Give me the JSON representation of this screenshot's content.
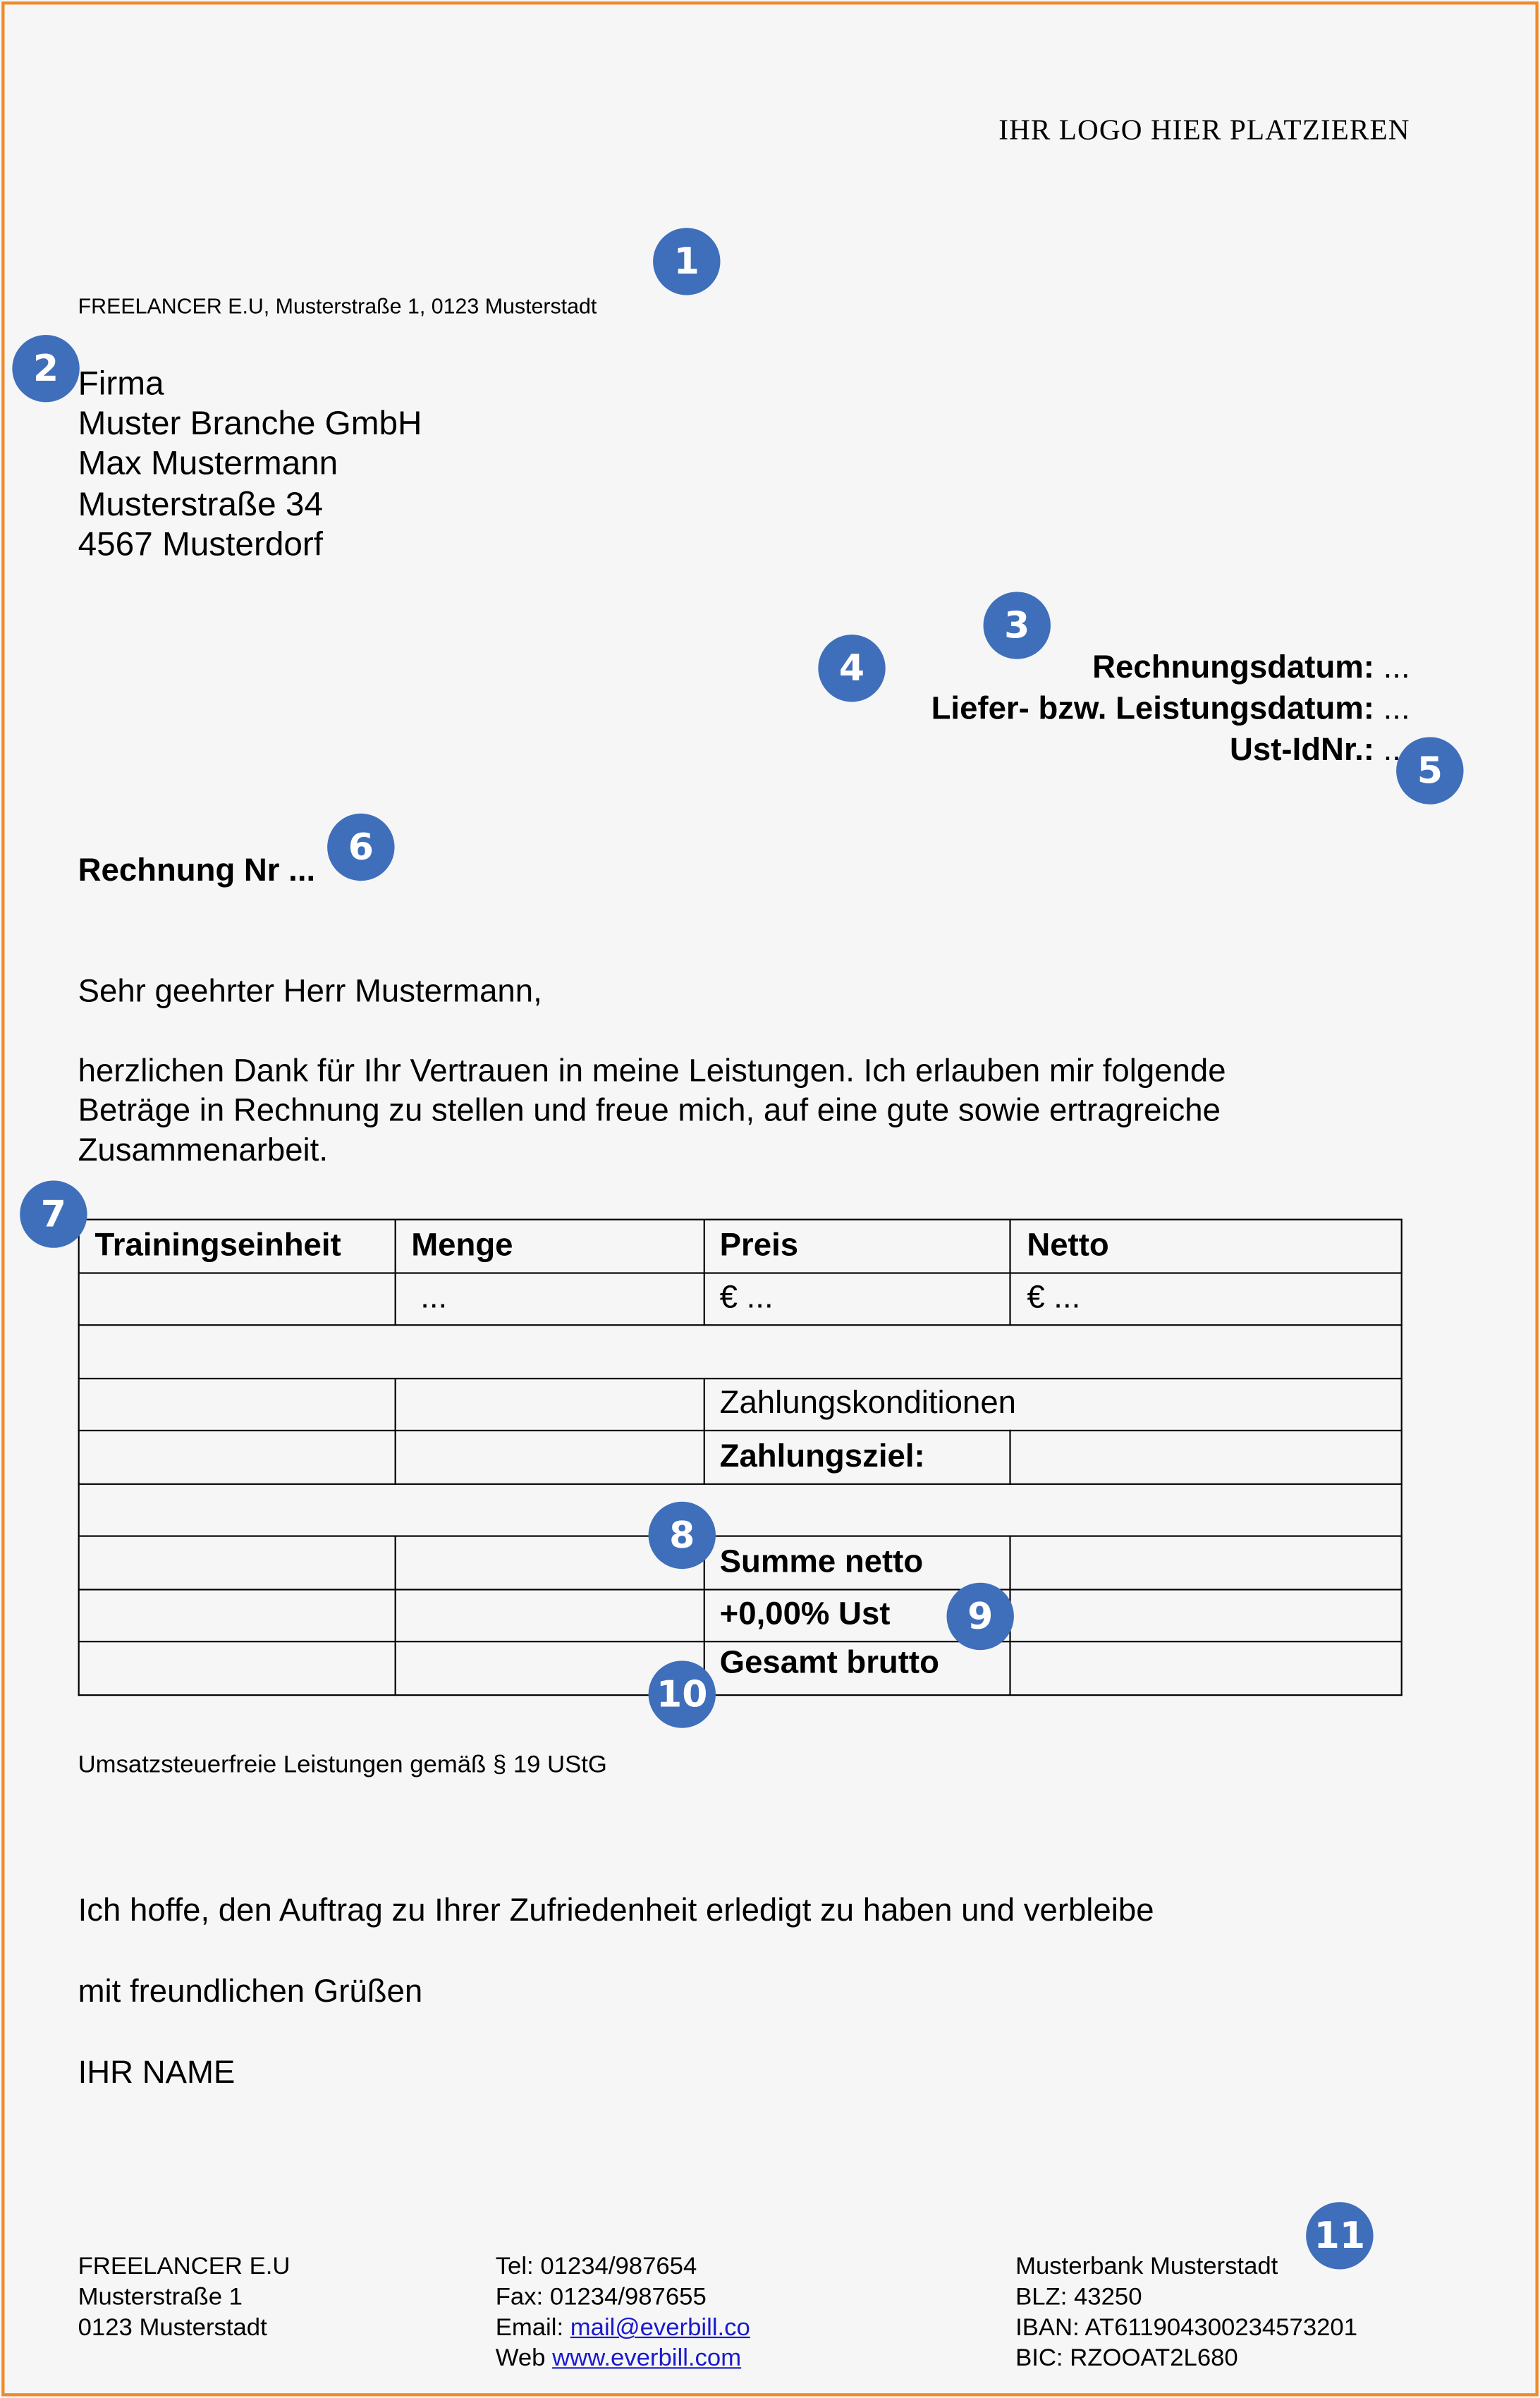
{
  "logo_placeholder": "IHR LOGO HIER PLATZIEREN",
  "sender_line": "FREELANCER E.U, Musterstraße 1,  0123 Musterstadt",
  "recipient": [
    "Firma",
    "Muster Branche GmbH",
    "Max Mustermann",
    "Musterstraße 34",
    "4567 Musterdorf"
  ],
  "meta": [
    {
      "label": "Rechnungsdatum:",
      "value": "..."
    },
    {
      "label": "Liefer- bzw. Leistungsdatum:",
      "value": "..."
    },
    {
      "label": "Ust-IdNr.:",
      "value": "..."
    }
  ],
  "invoice_title": "Rechnung Nr ...",
  "salutation": "Sehr geehrter Herr Mustermann,",
  "intro_lines": [
    "herzlichen Dank für Ihr Vertrauen in meine Leistungen. Ich erlauben mir folgende",
    "Beträge in Rechnung zu stellen und freue mich, auf eine gute sowie ertragreiche",
    "Zusammenarbeit."
  ],
  "table": {
    "headers": [
      "Trainingseinheit",
      "Menge",
      "Preis",
      "Netto"
    ],
    "row1": [
      "",
      "...",
      "€ ...",
      "€ ..."
    ],
    "payment_terms": "Zahlungskonditionen",
    "payment_due": "Zahlungsziel:",
    "sum_net": "Summe netto",
    "vat": "+0,00% Ust",
    "total_gross": "Gesamt brutto"
  },
  "tax_note": "Umsatzsteuerfreie Leistungen gemäß § 19 UStG",
  "closing": "Ich hoffe, den Auftrag zu Ihrer Zufriedenheit erledigt zu haben und verbleibe",
  "regards": "mit freundlichen Grüßen",
  "name": "IHR NAME",
  "footer": {
    "col1": [
      "FREELANCER E.U",
      "Musterstraße 1",
      "0123 Musterstadt"
    ],
    "tel": "Tel: 01234/987654",
    "fax": "Fax: 01234/987655",
    "email_label": "Email: ",
    "email": "mail@everbill.co",
    "web_label": "Web ",
    "web": "www.everbill.com",
    "col3": [
      "Musterbank Musterstadt",
      "BLZ: 43250",
      "IBAN: AT611904300234573201",
      "BIC: RZOOAT2L680"
    ]
  },
  "badges": [
    "1",
    "2",
    "3",
    "4",
    "5",
    "6",
    "7",
    "8",
    "9",
    "10",
    "11"
  ],
  "colors": {
    "badge": "#3f6fbb",
    "frame": "#ee8a2c",
    "link": "#1a1acc"
  }
}
